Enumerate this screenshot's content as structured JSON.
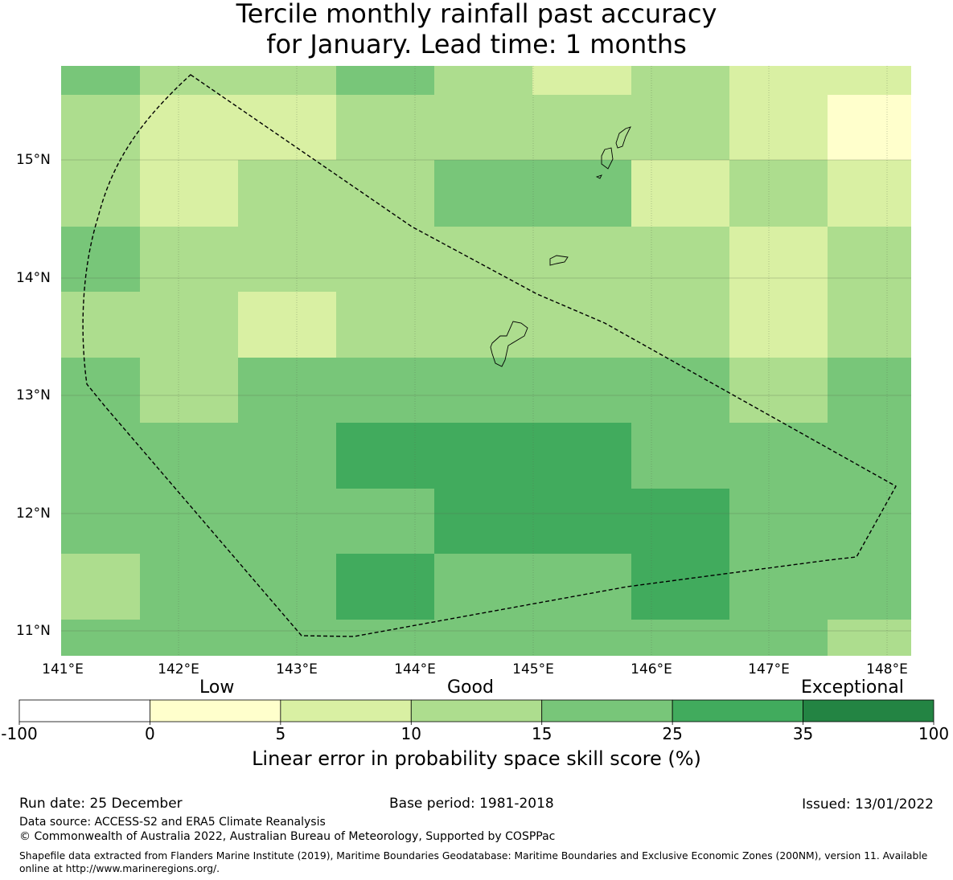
{
  "title": {
    "line1": "Tercile monthly rainfall past accuracy",
    "line2": "for January. Lead time: 1 months"
  },
  "map": {
    "lon_labels": [
      "141°E",
      "142°E",
      "143°E",
      "144°E",
      "145°E",
      "146°E",
      "147°E",
      "148°E"
    ],
    "lat_labels": [
      "15°N",
      "14°N",
      "13°N",
      "12°N",
      "11°N"
    ],
    "grid": [
      [
        4,
        3,
        3,
        4,
        3,
        2,
        3,
        2,
        2
      ],
      [
        3,
        2,
        2,
        3,
        3,
        3,
        3,
        2,
        1
      ],
      [
        3,
        2,
        3,
        3,
        4,
        4,
        2,
        3,
        2
      ],
      [
        4,
        3,
        3,
        3,
        3,
        3,
        3,
        2,
        3
      ],
      [
        3,
        3,
        2,
        3,
        3,
        3,
        3,
        2,
        3
      ],
      [
        4,
        3,
        4,
        4,
        4,
        4,
        4,
        3,
        4
      ],
      [
        4,
        4,
        4,
        5,
        5,
        5,
        4,
        4,
        4
      ],
      [
        4,
        4,
        4,
        4,
        5,
        5,
        5,
        4,
        4
      ],
      [
        3,
        4,
        4,
        5,
        4,
        4,
        5,
        4,
        4
      ],
      [
        4,
        4,
        4,
        4,
        4,
        4,
        4,
        4,
        3
      ]
    ]
  },
  "colorbar": {
    "colors": [
      "#ffffff",
      "#ffffcc",
      "#d9f0a3",
      "#addd8e",
      "#78c679",
      "#41ab5d",
      "#238443"
    ],
    "ticks": [
      "-100",
      "0",
      "5",
      "10",
      "15",
      "25",
      "35",
      "100"
    ],
    "categories": [
      "Low",
      "Good",
      "Exceptional"
    ],
    "title": "Linear error in probability space skill score (%)"
  },
  "footer": {
    "run_date": "Run date: 25 December",
    "base_period": "Base period: 1981-2018",
    "issued": "Issued: 13/01/2022",
    "data_source": "Data source: ACCESS-S2 and ERA5 Climate Reanalysis",
    "copyright": "© Commonwealth of Australia 2022, Australian Bureau of Meteorology, Supported by COSPPac",
    "shapefile": "Shapefile data extracted from Flanders Marine Institute (2019), Maritime Boundaries Geodatabase: Maritime Boundaries and Exclusive Economic Zones (200NM), version 11. Available online at http://www.marineregions.org/."
  }
}
